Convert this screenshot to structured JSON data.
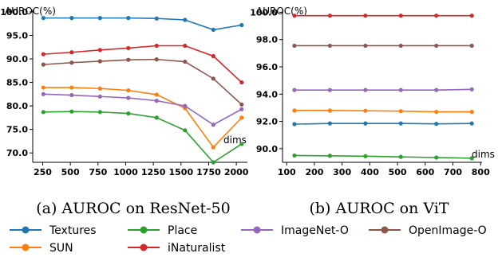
{
  "chart_data": [
    {
      "type": "line",
      "caption": "(a) AUROC on ResNet-50",
      "ylabel": "AUROC(%)",
      "xlabel": "dims",
      "x": [
        256,
        512,
        768,
        1024,
        1280,
        1536,
        1792,
        2048
      ],
      "xticks": [
        250,
        500,
        750,
        1000,
        1250,
        1500,
        1750,
        2000
      ],
      "yticks": [
        70.0,
        75.0,
        80.0,
        85.0,
        90.0,
        95.0,
        100.0
      ],
      "xlim": [
        160,
        2100
      ],
      "ylim": [
        68,
        100.5
      ],
      "series": [
        {
          "name": "Textures",
          "color": "#1f77b4",
          "values": [
            98.7,
            98.7,
            98.7,
            98.7,
            98.6,
            98.3,
            96.2,
            97.2
          ]
        },
        {
          "name": "SUN",
          "color": "#ff7f0e",
          "values": [
            83.9,
            83.9,
            83.7,
            83.3,
            82.4,
            79.5,
            71.2,
            77.5
          ]
        },
        {
          "name": "Place",
          "color": "#2ca02c",
          "values": [
            78.7,
            78.8,
            78.7,
            78.4,
            77.5,
            74.8,
            68.0,
            71.9
          ]
        },
        {
          "name": "iNaturalist",
          "color": "#d62728",
          "values": [
            91.0,
            91.4,
            91.9,
            92.3,
            92.8,
            92.8,
            90.6,
            85.0
          ]
        },
        {
          "name": "ImageNet-O",
          "color": "#9467bd",
          "values": [
            82.5,
            82.3,
            82.0,
            81.7,
            81.1,
            80.0,
            76.0,
            79.3
          ]
        },
        {
          "name": "OpenImage-O",
          "color": "#8c564b",
          "values": [
            88.8,
            89.2,
            89.5,
            89.8,
            89.9,
            89.4,
            85.8,
            80.3
          ]
        }
      ]
    },
    {
      "type": "line",
      "caption": "(b) AUROC on ViT",
      "ylabel": "AUROC(%)",
      "xlabel": "dims",
      "x": [
        128,
        256,
        384,
        512,
        640,
        768
      ],
      "xticks": [
        100,
        200,
        300,
        400,
        500,
        600,
        700,
        800
      ],
      "yticks": [
        90.0,
        92.0,
        94.0,
        96.0,
        98.0,
        100.0
      ],
      "xlim": [
        85,
        805
      ],
      "ylim": [
        89.0,
        100.2
      ],
      "series": [
        {
          "name": "Textures",
          "color": "#1f77b4",
          "values": [
            91.8,
            91.85,
            91.85,
            91.85,
            91.82,
            91.85
          ]
        },
        {
          "name": "SUN",
          "color": "#ff7f0e",
          "values": [
            92.8,
            92.8,
            92.78,
            92.75,
            92.7,
            92.7
          ]
        },
        {
          "name": "Place",
          "color": "#2ca02c",
          "values": [
            89.5,
            89.48,
            89.45,
            89.4,
            89.35,
            89.3
          ]
        },
        {
          "name": "iNaturalist",
          "color": "#d62728",
          "values": [
            99.75,
            99.75,
            99.75,
            99.75,
            99.75,
            99.75
          ]
        },
        {
          "name": "ImageNet-O",
          "color": "#9467bd",
          "values": [
            94.3,
            94.3,
            94.3,
            94.3,
            94.3,
            94.35
          ]
        },
        {
          "name": "OpenImage-O",
          "color": "#8c564b",
          "values": [
            97.55,
            97.55,
            97.55,
            97.55,
            97.55,
            97.55
          ]
        }
      ]
    }
  ],
  "legend": [
    {
      "label": "Textures",
      "color": "#1f77b4"
    },
    {
      "label": "Place",
      "color": "#2ca02c"
    },
    {
      "label": "ImageNet-O",
      "color": "#9467bd"
    },
    {
      "label": "OpenImage-O",
      "color": "#8c564b"
    },
    {
      "label": "SUN",
      "color": "#ff7f0e"
    },
    {
      "label": "iNaturalist",
      "color": "#d62728"
    }
  ]
}
